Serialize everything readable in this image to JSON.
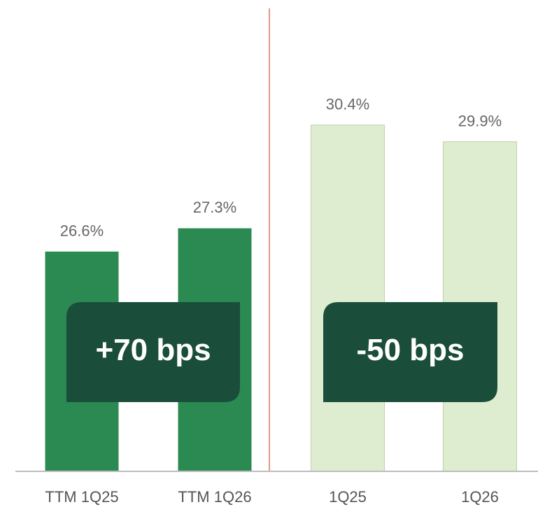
{
  "chart_data": {
    "type": "bar",
    "categories": [
      "TTM 1Q25",
      "TTM 1Q26",
      "1Q25",
      "1Q26"
    ],
    "values": [
      26.6,
      27.3,
      30.4,
      29.9
    ],
    "value_labels": [
      "26.6%",
      "27.3%",
      "30.4%",
      "29.9%"
    ],
    "colors": [
      "#2b8a52",
      "#2b8a52",
      "#deecd0",
      "#deecd0"
    ],
    "ylim": [
      20,
      33
    ],
    "annotations": [
      "+70 bps",
      "-50 bps"
    ]
  }
}
